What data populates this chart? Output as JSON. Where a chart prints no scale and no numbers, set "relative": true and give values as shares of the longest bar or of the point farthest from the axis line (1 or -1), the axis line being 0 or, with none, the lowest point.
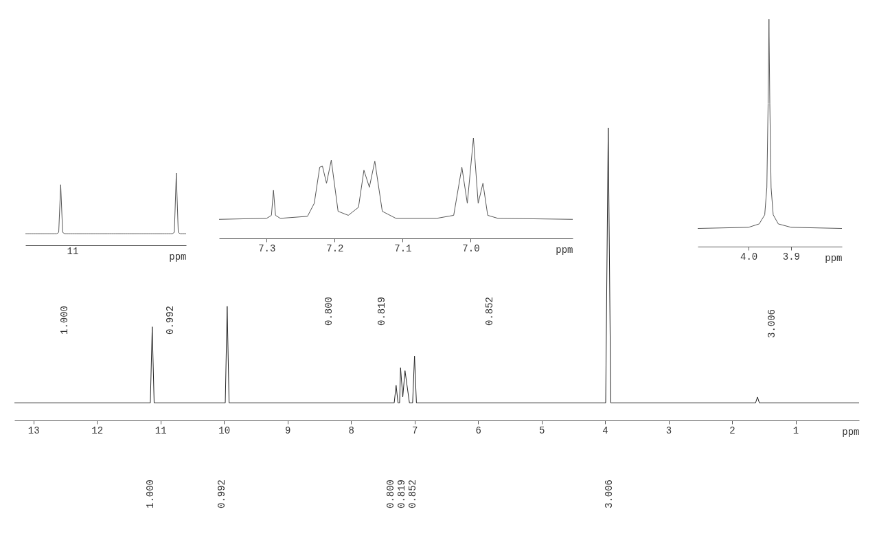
{
  "chart_data": [
    {
      "type": "line",
      "relative": true,
      "color": "#555555",
      "xlabel": "ppm",
      "categories": [
        null,
        null,
        null,
        null,
        null,
        null,
        null,
        null,
        null,
        null,
        null,
        null,
        null,
        null,
        null,
        null,
        null,
        null,
        null,
        null,
        null,
        null,
        null,
        null,
        null,
        null,
        null,
        null,
        null,
        null,
        null,
        null,
        null,
        null,
        null,
        null,
        null,
        null,
        null,
        null,
        null,
        null,
        null,
        null,
        null,
        null,
        null,
        null,
        null,
        null,
        null,
        null,
        null,
        null,
        null,
        null,
        null,
        null,
        null,
        null,
        null,
        null,
        null,
        null,
        null,
        null,
        null,
        null,
        null,
        null,
        null,
        null,
        null,
        null,
        null,
        null,
        null,
        null,
        null,
        null,
        null,
        null,
        null
      ],
      "values": [
        0.16,
        0.16,
        0.16,
        0.16,
        0.16,
        0.16,
        0.16,
        0.16,
        0.16,
        0.16,
        0.16,
        0.16,
        0.16,
        0.16,
        0.16,
        0.16,
        0.16,
        0.18,
        0.84,
        0.18,
        0.16,
        0.16,
        0.16,
        0.16,
        0.16,
        0.16,
        0.16,
        0.16,
        0.16,
        0.16,
        0.16,
        0.16,
        0.16,
        0.16,
        0.16,
        0.16,
        0.16,
        0.16,
        0.16,
        0.16,
        0.16,
        0.16,
        0.16,
        0.16,
        0.16,
        0.16,
        0.16,
        0.16,
        0.16,
        0.16,
        0.16,
        0.16,
        0.16,
        0.16,
        0.16,
        0.16,
        0.16,
        0.16,
        0.16,
        0.16,
        0.16,
        0.16,
        0.16,
        0.16,
        0.16,
        0.16,
        0.16,
        0.16,
        0.16,
        0.16,
        0.16,
        0.16,
        0.16,
        0.16,
        0.16,
        0.16,
        0.18,
        1,
        0.18,
        0.16,
        0.16,
        0.16,
        0.16
      ],
      "annotations": [
        "11",
        "1.000",
        "0.992"
      ]
    },
    {
      "type": "line",
      "relative": true,
      "color": "#555555",
      "xlim": [
        7.37,
        6.85
      ],
      "xticks": [
        7.3,
        7.2,
        7.1,
        {
          "value": 7,
          "label": "7.0"
        }
      ],
      "xlabel": "ppm",
      "x": [
        7.37,
        7.3,
        7.293,
        7.29,
        7.287,
        7.28,
        7.24,
        7.23,
        7.222,
        7.218,
        7.212,
        7.205,
        7.195,
        7.18,
        7.165,
        7.157,
        7.149,
        7.141,
        7.13,
        7.11,
        7.05,
        7.025,
        7.013,
        7.005,
        6.996,
        6.989,
        6.982,
        6.975,
        6.96,
        6.85
      ],
      "values": [
        0.19,
        0.2,
        0.23,
        0.48,
        0.23,
        0.2,
        0.22,
        0.35,
        0.71,
        0.72,
        0.55,
        0.78,
        0.27,
        0.23,
        0.31,
        0.68,
        0.51,
        0.77,
        0.27,
        0.2,
        0.2,
        0.23,
        0.71,
        0.35,
        1,
        0.35,
        0.55,
        0.23,
        0.2,
        0.19
      ],
      "annotations": [
        "0.800",
        "0.819",
        "0.852"
      ]
    },
    {
      "type": "line",
      "relative": true,
      "color": "#555555",
      "xlim": [
        4.12,
        3.78
      ],
      "xticks": [
        {
          "value": 4,
          "label": "4.0"
        },
        3.9
      ],
      "xlabel": "ppm",
      "x": [
        4.12,
        4.0,
        3.975,
        3.962,
        3.957,
        3.954,
        3.952,
        3.95,
        3.947,
        3.942,
        3.93,
        3.9,
        3.78
      ],
      "values": [
        0.08,
        0.085,
        0.1,
        0.14,
        0.26,
        0.63,
        1,
        0.63,
        0.26,
        0.14,
        0.1,
        0.085,
        0.08
      ],
      "annotations": [
        "3.006"
      ]
    },
    {
      "type": "line",
      "relative": true,
      "color": "#222222",
      "xlim": [
        13.3,
        0
      ],
      "xticks": [
        13,
        12,
        11,
        10,
        9,
        8,
        7,
        6,
        5,
        4,
        3,
        2,
        1
      ],
      "xlabel": "ppm",
      "x": [
        13.3,
        11.16,
        11.13,
        11.1,
        9.98,
        9.95,
        9.92,
        7.32,
        7.29,
        7.26,
        7.235,
        7.22,
        7.185,
        7.15,
        7.08,
        7.03,
        7.0,
        6.97,
        3.99,
        3.95,
        3.91,
        1.63,
        1.6,
        1.57,
        0
      ],
      "values": [
        0.06,
        0.06,
        0.32,
        0.06,
        0.06,
        0.39,
        0.06,
        0.06,
        0.12,
        0.06,
        0.06,
        0.18,
        0.08,
        0.17,
        0.06,
        0.06,
        0.22,
        0.06,
        0.06,
        1,
        0.06,
        0.06,
        0.08,
        0.06,
        0.06
      ],
      "annotations": [
        "1.000",
        "0.992",
        "0.800",
        "0.819",
        "0.852",
        "3.006"
      ]
    }
  ]
}
